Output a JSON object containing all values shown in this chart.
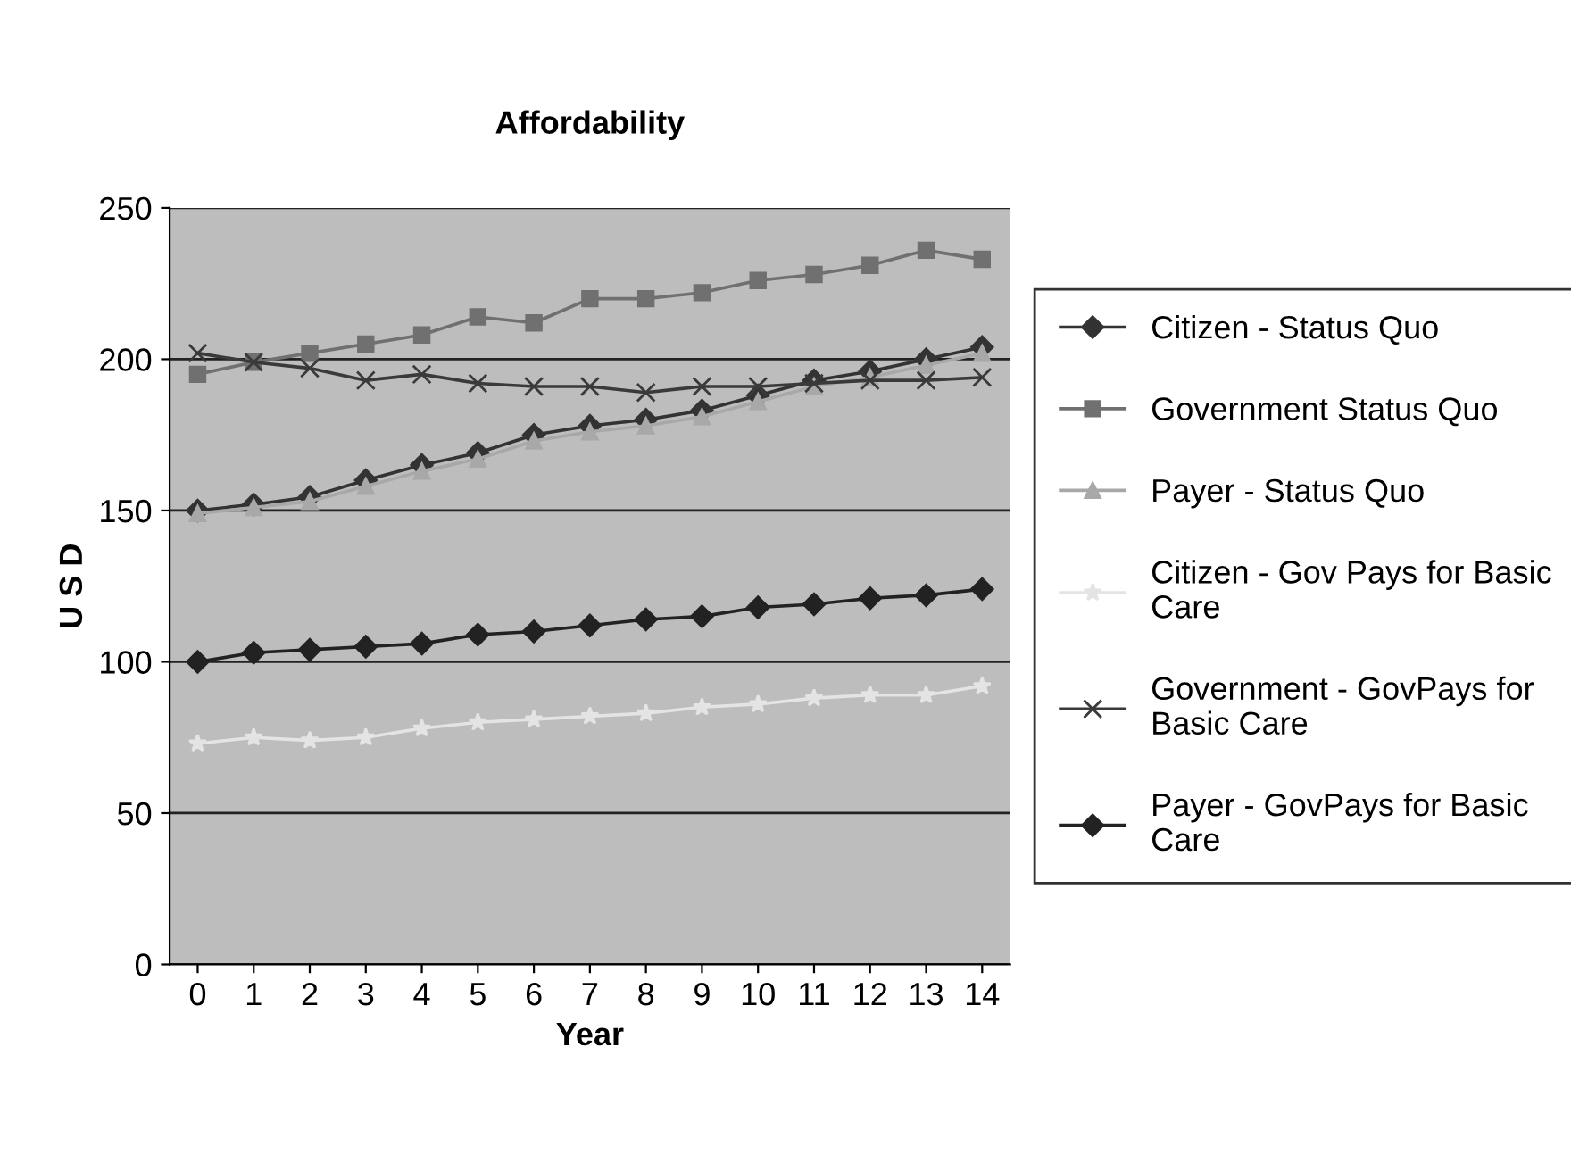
{
  "chart_data": {
    "type": "line",
    "title": "Affordability",
    "xlabel": "Year",
    "ylabel": "U S D",
    "x": [
      0,
      1,
      2,
      3,
      4,
      5,
      6,
      7,
      8,
      9,
      10,
      11,
      12,
      13,
      14
    ],
    "xlim": [
      -0.5,
      14.5
    ],
    "xticks": [
      0,
      1,
      2,
      3,
      4,
      5,
      6,
      7,
      8,
      9,
      10,
      11,
      12,
      13,
      14
    ],
    "ylim": [
      0,
      250
    ],
    "yticks": [
      0,
      50,
      100,
      150,
      200,
      250
    ],
    "grid": "y",
    "legend": "right",
    "line_style": "solid",
    "series": [
      {
        "name": "Citizen - Status Quo",
        "color": "#333333",
        "marker": "diamond",
        "values": [
          150,
          152,
          154.5,
          160,
          165,
          169,
          175,
          178,
          180,
          183,
          188,
          193,
          196,
          200,
          204
        ]
      },
      {
        "name": "Government Status Quo",
        "color": "#707070",
        "marker": "square",
        "values": [
          195,
          199,
          202,
          205,
          208,
          214,
          212,
          220,
          220,
          222,
          226,
          228,
          231,
          236,
          233
        ]
      },
      {
        "name": "Payer - Status Quo",
        "color": "#a8a8a8",
        "marker": "triangle",
        "values": [
          149,
          151,
          153,
          158,
          163,
          167,
          173,
          176,
          178,
          181,
          186,
          191,
          194,
          198,
          202
        ]
      },
      {
        "name": "Citizen - Gov Pays for Basic Care",
        "color": "#e4e4e4",
        "marker": "star",
        "values": [
          73,
          75,
          74,
          75,
          78,
          80,
          81,
          82,
          83,
          85,
          86,
          88,
          89,
          89,
          92
        ]
      },
      {
        "name": "Government - GovPays for Basic Care",
        "color": "#3a3a3a",
        "marker": "cross",
        "values": [
          202,
          199,
          197,
          193,
          195,
          192,
          191,
          191,
          189,
          191,
          191,
          192,
          193,
          193,
          194
        ]
      },
      {
        "name": "Payer - GovPays for Basic Care",
        "color": "#222222",
        "marker": "diamond",
        "values": [
          100,
          103,
          104,
          105,
          106,
          109,
          110,
          112,
          114,
          115,
          118,
          119,
          121,
          122,
          124
        ]
      }
    ]
  }
}
